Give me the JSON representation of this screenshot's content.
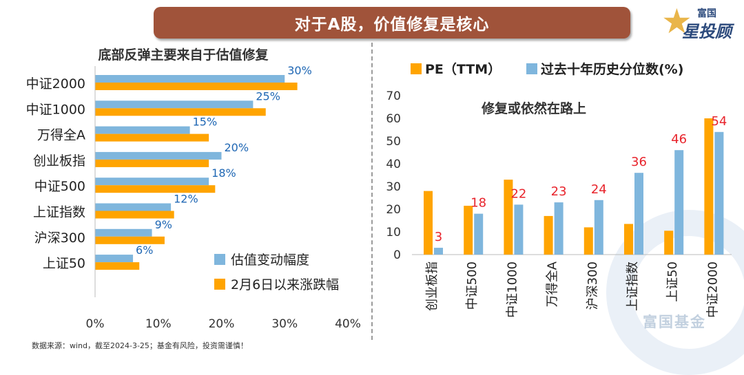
{
  "banner": {
    "title": "对于A股，价值修复是核心"
  },
  "logo": {
    "top_text": "富国",
    "main_text": "星投顾"
  },
  "source_note": "数据来源：wind，截至2024-3-25；基金有风险，投资需谨慎！",
  "watermark": "富国基金",
  "colors": {
    "orange": "#ffa400",
    "blue": "#7fb6dd",
    "banner": "#a0533a",
    "label_blue": "#1f67b4",
    "label_red": "#e8242c"
  },
  "chart_data": [
    {
      "type": "bar",
      "orientation": "horizontal",
      "title": "底部反弹主要来自于估值修复",
      "categories": [
        "中证2000",
        "中证1000",
        "万得全A",
        "创业板指",
        "中证500",
        "上证指数",
        "沪深300",
        "上证50"
      ],
      "series": [
        {
          "name": "估值变动幅度",
          "values": [
            30,
            25,
            15,
            20,
            18,
            12,
            9,
            6
          ]
        },
        {
          "name": "2月6日以来涨跌幅",
          "values": [
            32,
            27,
            18,
            18,
            19,
            12.5,
            11,
            7
          ]
        }
      ],
      "data_labels": [
        "30%",
        "25%",
        "15%",
        "20%",
        "18%",
        "12%",
        "9%",
        "6%"
      ],
      "xlim": [
        0,
        40
      ],
      "xticks": [
        "0%",
        "10%",
        "20%",
        "30%",
        "40%"
      ],
      "grid": false,
      "legend_position": "bottom-right"
    },
    {
      "type": "bar",
      "title": "修复或依然在路上",
      "categories": [
        "创业板指",
        "中证500",
        "中证1000",
        "万得全A",
        "沪深300",
        "上证指数",
        "上证50",
        "中证2000"
      ],
      "series": [
        {
          "name": "PE（TTM）",
          "values": [
            28,
            21.5,
            33,
            17,
            12,
            13.5,
            10.5,
            60
          ]
        },
        {
          "name": "过去十年历史分位数(%)",
          "values": [
            3,
            18,
            22,
            23,
            24,
            36,
            46,
            54
          ]
        }
      ],
      "data_labels": [
        "3",
        "18",
        "22",
        "23",
        "24",
        "36",
        "46",
        "54"
      ],
      "ylim": [
        0,
        70
      ],
      "yticks": [
        "0",
        "10",
        "20",
        "30",
        "40",
        "50",
        "60",
        "70"
      ],
      "grid": false,
      "legend_position": "top"
    }
  ]
}
